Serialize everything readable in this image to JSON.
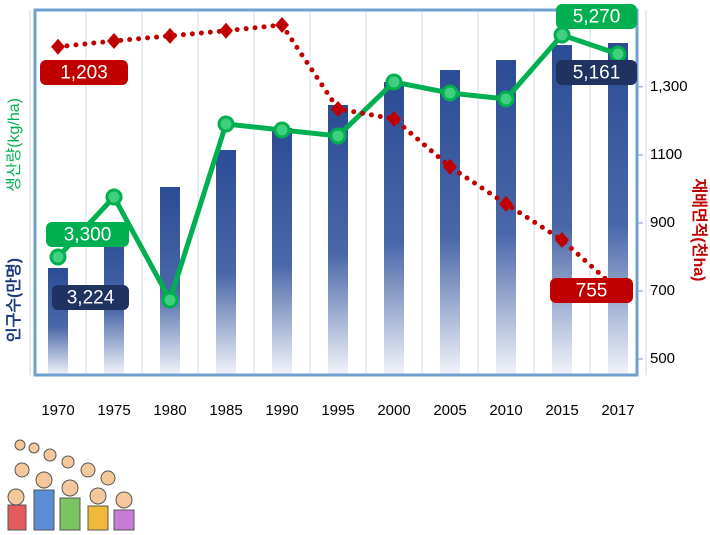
{
  "chart_data": {
    "type": "combo",
    "categories": [
      "1970",
      "1975",
      "1980",
      "1985",
      "1990",
      "1995",
      "2000",
      "2005",
      "2010",
      "2015",
      "2017"
    ],
    "ylim": [
      2250,
      5490
    ],
    "y2lim": [
      453,
      1526
    ],
    "y2ticks": [
      500,
      700,
      900,
      1100,
      {
        "value": 1300,
        "label": "1,300"
      }
    ],
    "ylabel_production": "생산량(kg/ha)",
    "ylabel_population": "인구수(만명)",
    "y2label": "재배면적(천ha)",
    "grid": true,
    "series": [
      {
        "name": "인구수(만명)",
        "type": "bar",
        "color": "#2b4c96",
        "values": [
          3200,
          3537,
          3919,
          4247,
          4443,
          4647,
          4851,
          4957,
          5046,
          5179,
          5197
        ]
      },
      {
        "name": "생산량(kg/ha)",
        "type": "line",
        "color": "#00b050",
        "values": [
          3297,
          3830,
          2916,
          4478,
          4425,
          4372,
          4851,
          4753,
          4700,
          5268,
          5099
        ]
      },
      {
        "name": "재배면적(천ha)",
        "type": "dotted",
        "axis": "y2",
        "color": "#c00000",
        "values": [
          1418,
          1435,
          1450,
          1465,
          1482,
          1235,
          1206,
          1065,
          956,
          850,
          703
        ]
      }
    ],
    "annotations": [
      {
        "text": "1,203"
      },
      {
        "text": "3,300"
      },
      {
        "text": "3,224"
      },
      {
        "text": "5,270"
      },
      {
        "text": "5,161"
      },
      {
        "text": "755"
      }
    ]
  }
}
